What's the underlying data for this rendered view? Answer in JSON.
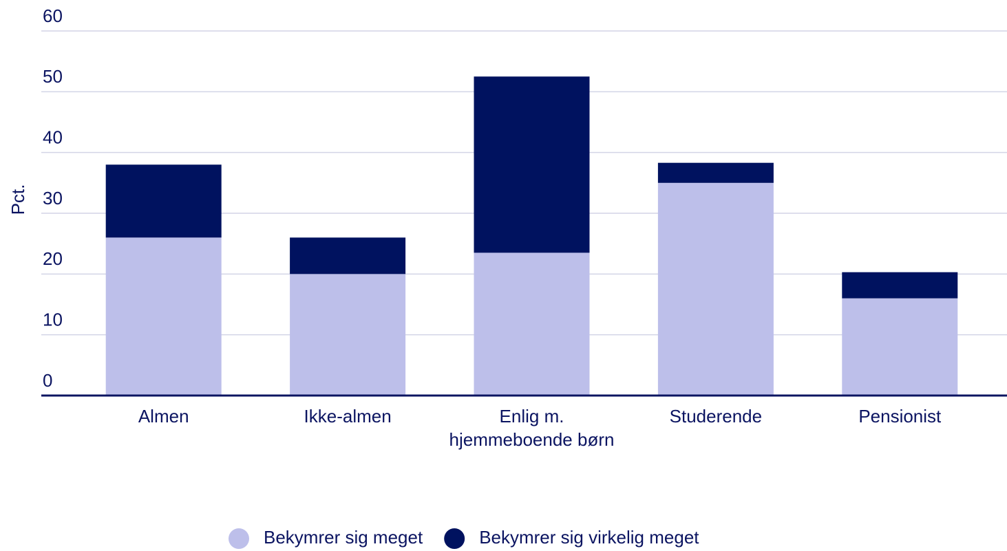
{
  "chart_data": {
    "type": "stacked_bar",
    "y_label": "Pct.",
    "categories": [
      "Almen",
      "Ikke-almen",
      "Enlig m. hjemmeboende børn",
      "Studerende",
      "Pensionist"
    ],
    "series": [
      {
        "name": "Bekymrer sig meget",
        "color": "#bdbfea",
        "values": [
          26,
          20,
          23.5,
          35,
          16
        ]
      },
      {
        "name": "Bekymrer sig virkelig meget",
        "color": "#00125f",
        "values": [
          12,
          6,
          29,
          3.3,
          4.3
        ]
      }
    ],
    "ylim": [
      0,
      60
    ],
    "yticks": [
      0,
      10,
      20,
      30,
      40,
      50,
      60
    ],
    "grid": true,
    "legend": "bottom"
  }
}
